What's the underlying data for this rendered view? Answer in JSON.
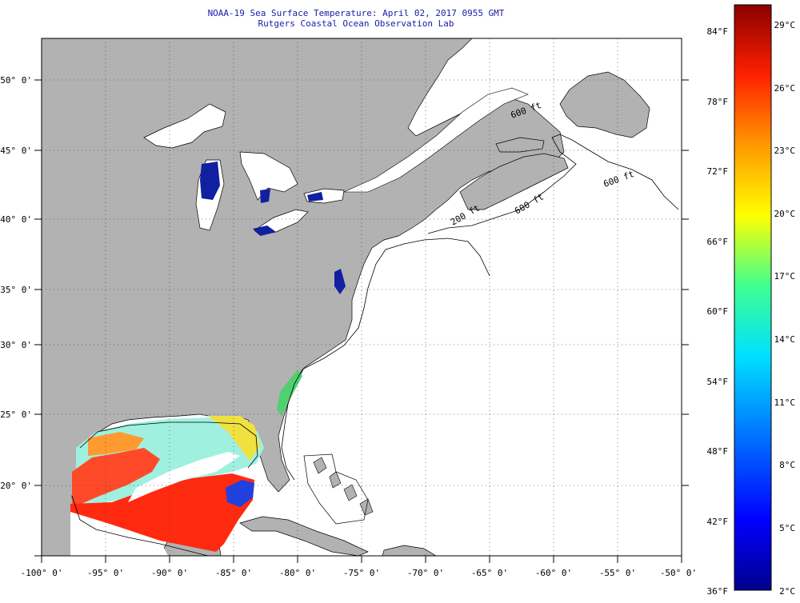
{
  "header": {
    "title": "NOAA-19 Sea Surface Temperature:  April 02, 2017 0955 GMT",
    "subtitle": "Rutgers Coastal Ocean Observation Lab"
  },
  "map": {
    "lon_ticks": [
      "-100° 0'",
      "-95° 0'",
      "-90° 0'",
      "-85° 0'",
      "-80° 0'",
      "-75° 0'",
      "-70° 0'",
      "-65° 0'",
      "-60° 0'",
      "-55° 0'",
      "-50° 0'"
    ],
    "lat_ticks": [
      "50° 0'",
      "45° 0'",
      "40° 0'",
      "35° 0'",
      "30° 0'",
      "25° 0'",
      "20° 0'"
    ],
    "isobath_labels": [
      "200 ft",
      "600 ft",
      "600 ft",
      "600 ft"
    ],
    "colors": {
      "land": "#b2b2b2",
      "ocean_nodata": "#ffffff",
      "grid": "#555555"
    }
  },
  "colorbar": {
    "fahrenheit_labels": [
      "84°F",
      "78°F",
      "72°F",
      "66°F",
      "60°F",
      "54°F",
      "48°F",
      "42°F",
      "36°F"
    ],
    "celsius_labels": [
      "29°C",
      "26°C",
      "23°C",
      "20°C",
      "17°C",
      "14°C",
      "11°C",
      "8°C",
      "5°C",
      "2°C"
    ],
    "colors": [
      "#00008b",
      "#0000ff",
      "#0080ff",
      "#00e0ff",
      "#40ff90",
      "#ffff00",
      "#ff9900",
      "#ff2000",
      "#8b0000"
    ]
  }
}
